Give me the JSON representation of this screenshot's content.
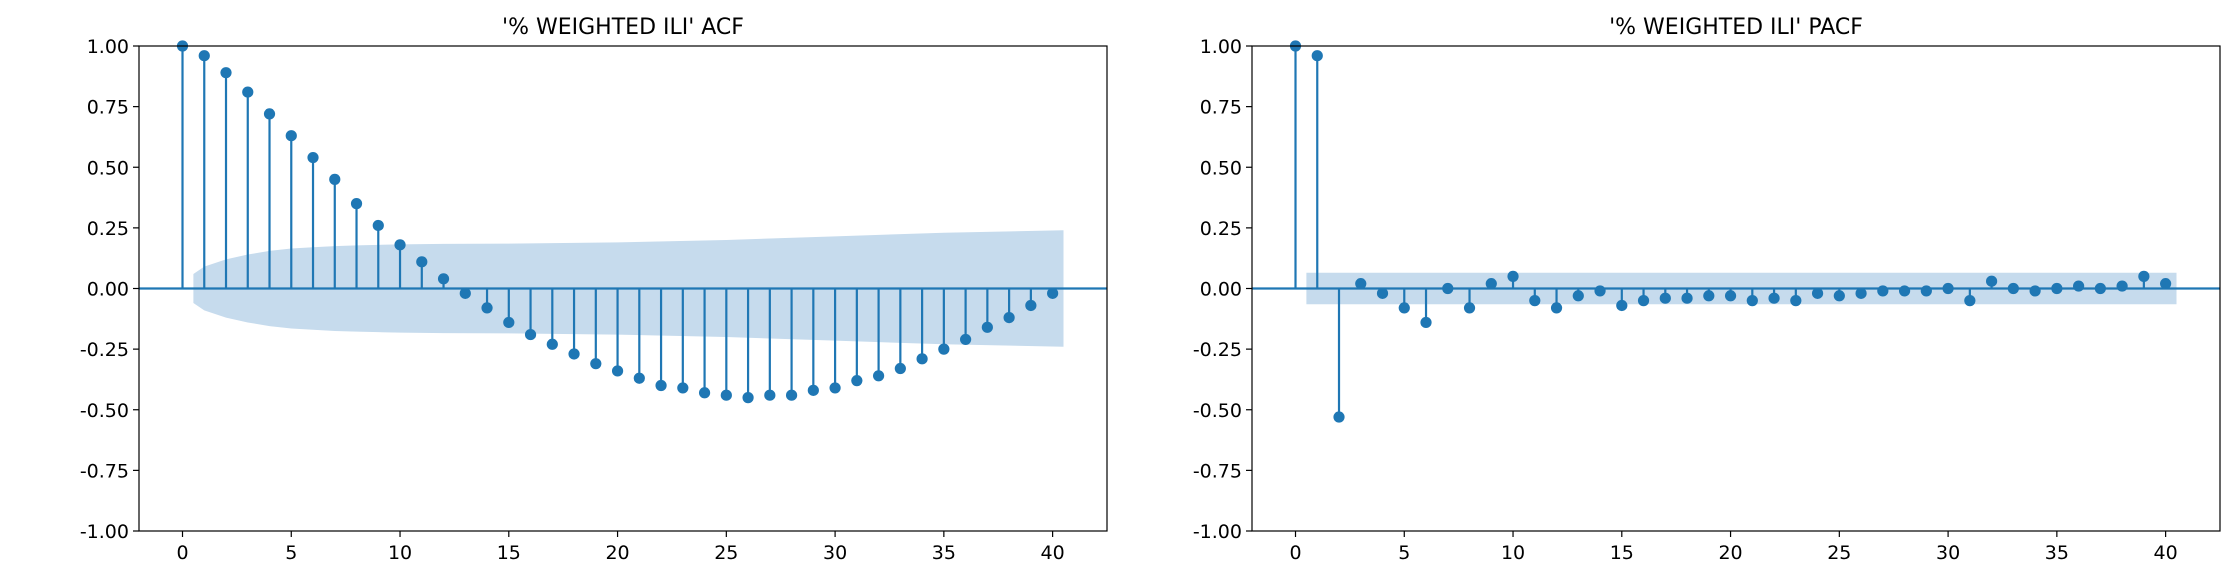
{
  "colors": {
    "marker": "#1f77b4",
    "band": "#c6dbed",
    "axis": "#000000"
  },
  "chart_data": [
    {
      "type": "stem",
      "title": "'% WEIGHTED ILI' ACF",
      "xlabel": "",
      "ylabel": "",
      "xlim": [
        -2,
        42.5
      ],
      "ylim": [
        -1.0,
        1.0
      ],
      "xticks": [
        0,
        5,
        10,
        15,
        20,
        25,
        30,
        35,
        40
      ],
      "yticks": [
        "-1.00",
        "-0.75",
        "-0.50",
        "-0.25",
        "0.00",
        "0.25",
        "0.50",
        "0.75",
        "1.00"
      ],
      "grid": false,
      "lags": [
        0,
        1,
        2,
        3,
        4,
        5,
        6,
        7,
        8,
        9,
        10,
        11,
        12,
        13,
        14,
        15,
        16,
        17,
        18,
        19,
        20,
        21,
        22,
        23,
        24,
        25,
        26,
        27,
        28,
        29,
        30,
        31,
        32,
        33,
        34,
        35,
        36,
        37,
        38,
        39,
        40
      ],
      "values": [
        1.0,
        0.96,
        0.89,
        0.81,
        0.72,
        0.63,
        0.54,
        0.45,
        0.35,
        0.26,
        0.18,
        0.11,
        0.04,
        -0.02,
        -0.08,
        -0.14,
        -0.19,
        -0.23,
        -0.27,
        -0.31,
        -0.34,
        -0.37,
        -0.4,
        -0.41,
        -0.43,
        -0.44,
        -0.45,
        -0.44,
        -0.44,
        -0.42,
        -0.41,
        -0.38,
        -0.36,
        -0.33,
        -0.29,
        -0.25,
        -0.21,
        -0.16,
        -0.12,
        -0.07,
        -0.02
      ],
      "confidence_band": {
        "lags": [
          0.5,
          1,
          2,
          3,
          4,
          5,
          6,
          7,
          8,
          9,
          10,
          12,
          15,
          20,
          25,
          30,
          35,
          40.5
        ],
        "upper": [
          0.06,
          0.09,
          0.12,
          0.14,
          0.155,
          0.165,
          0.17,
          0.175,
          0.178,
          0.18,
          0.182,
          0.184,
          0.185,
          0.19,
          0.2,
          0.215,
          0.23,
          0.24
        ]
      }
    },
    {
      "type": "stem",
      "title": "'% WEIGHTED ILI' PACF",
      "xlabel": "",
      "ylabel": "",
      "xlim": [
        -2,
        42.5
      ],
      "ylim": [
        -1.0,
        1.0
      ],
      "xticks": [
        0,
        5,
        10,
        15,
        20,
        25,
        30,
        35,
        40
      ],
      "yticks": [
        "-1.00",
        "-0.75",
        "-0.50",
        "-0.25",
        "0.00",
        "0.25",
        "0.50",
        "0.75",
        "1.00"
      ],
      "grid": false,
      "lags": [
        0,
        1,
        2,
        3,
        4,
        5,
        6,
        7,
        8,
        9,
        10,
        11,
        12,
        13,
        14,
        15,
        16,
        17,
        18,
        19,
        20,
        21,
        22,
        23,
        24,
        25,
        26,
        27,
        28,
        29,
        30,
        31,
        32,
        33,
        34,
        35,
        36,
        37,
        38,
        39,
        40
      ],
      "values": [
        1.0,
        0.96,
        -0.53,
        0.02,
        -0.02,
        -0.08,
        -0.14,
        0.0,
        -0.08,
        0.02,
        0.05,
        -0.05,
        -0.08,
        -0.03,
        -0.01,
        -0.07,
        -0.05,
        -0.04,
        -0.04,
        -0.03,
        -0.03,
        -0.05,
        -0.04,
        -0.05,
        -0.02,
        -0.03,
        -0.02,
        -0.01,
        -0.01,
        -0.01,
        0.0,
        -0.05,
        0.03,
        0.0,
        -0.01,
        0.0,
        0.01,
        0.0,
        0.01,
        0.05,
        0.02
      ],
      "confidence_band": {
        "lags": [
          0.5,
          40.5
        ],
        "upper": [
          0.065,
          0.065
        ]
      }
    }
  ]
}
